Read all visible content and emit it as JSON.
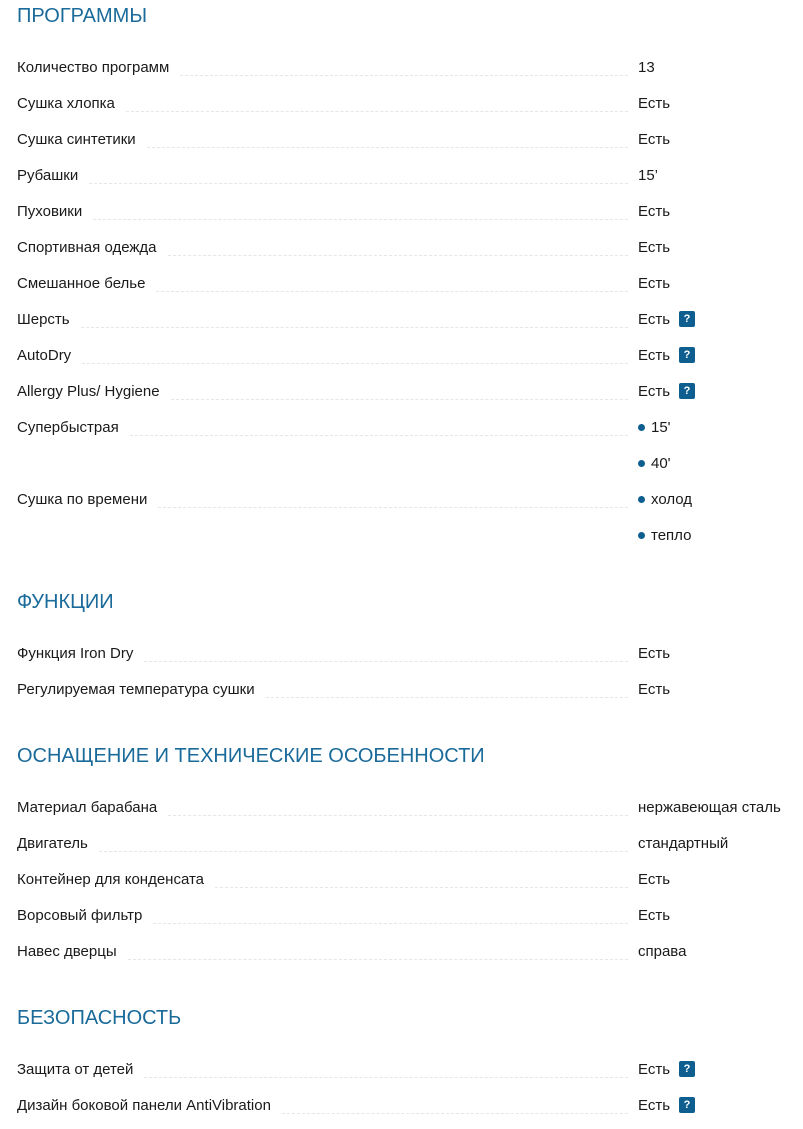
{
  "colors": {
    "heading": "#1a6a9a",
    "accent": "#0e5f8f",
    "leader": "#e6e6e6"
  },
  "sections": [
    {
      "title": "ПРОГРАММЫ",
      "rows": [
        {
          "label": "Количество программ",
          "value": "13"
        },
        {
          "label": "Сушка хлопка",
          "value": "Есть"
        },
        {
          "label": "Сушка синтетики",
          "value": "Есть"
        },
        {
          "label": "Рубашки",
          "value": "15’"
        },
        {
          "label": "Пуховики",
          "value": "Есть"
        },
        {
          "label": "Спортивная одежда",
          "value": "Есть"
        },
        {
          "label": "Смешанное белье",
          "value": "Есть"
        },
        {
          "label": "Шерсть",
          "value": "Есть",
          "help": "?"
        },
        {
          "label": "AutoDry",
          "value": "Есть",
          "help": "?"
        },
        {
          "label": "Allergy Plus/ Hygiene",
          "value": "Есть",
          "help": "?"
        },
        {
          "label": "Супербыстрая",
          "value": "15'",
          "bullet": true
        },
        {
          "label": "",
          "value": "40'",
          "bullet": true
        },
        {
          "label": "Сушка по времени",
          "value": "холод",
          "bullet": true
        },
        {
          "label": "",
          "value": "тепло",
          "bullet": true
        }
      ]
    },
    {
      "title": "ФУНКЦИИ",
      "rows": [
        {
          "label": "Функция Iron Dry",
          "value": "Есть"
        },
        {
          "label": "Регулируемая температура сушки",
          "value": "Есть"
        }
      ]
    },
    {
      "title": "ОСНАЩЕНИЕ И ТЕХНИЧЕСКИЕ ОСОБЕННОСТИ",
      "rows": [
        {
          "label": "Материал барабана",
          "value": "нержавеющая сталь"
        },
        {
          "label": "Двигатель",
          "value": "стандартный"
        },
        {
          "label": "Контейнер для конденсата",
          "value": "Есть"
        },
        {
          "label": "Ворсовый фильтр",
          "value": "Есть"
        },
        {
          "label": "Навес дверцы",
          "value": "справа"
        }
      ]
    },
    {
      "title": "БЕЗОПАСНОСТЬ",
      "rows": [
        {
          "label": "Защита от детей",
          "value": "Есть",
          "help": "?"
        },
        {
          "label": "Дизайн боковой панели AntiVibration",
          "value": "Есть",
          "help": "?"
        }
      ]
    }
  ]
}
